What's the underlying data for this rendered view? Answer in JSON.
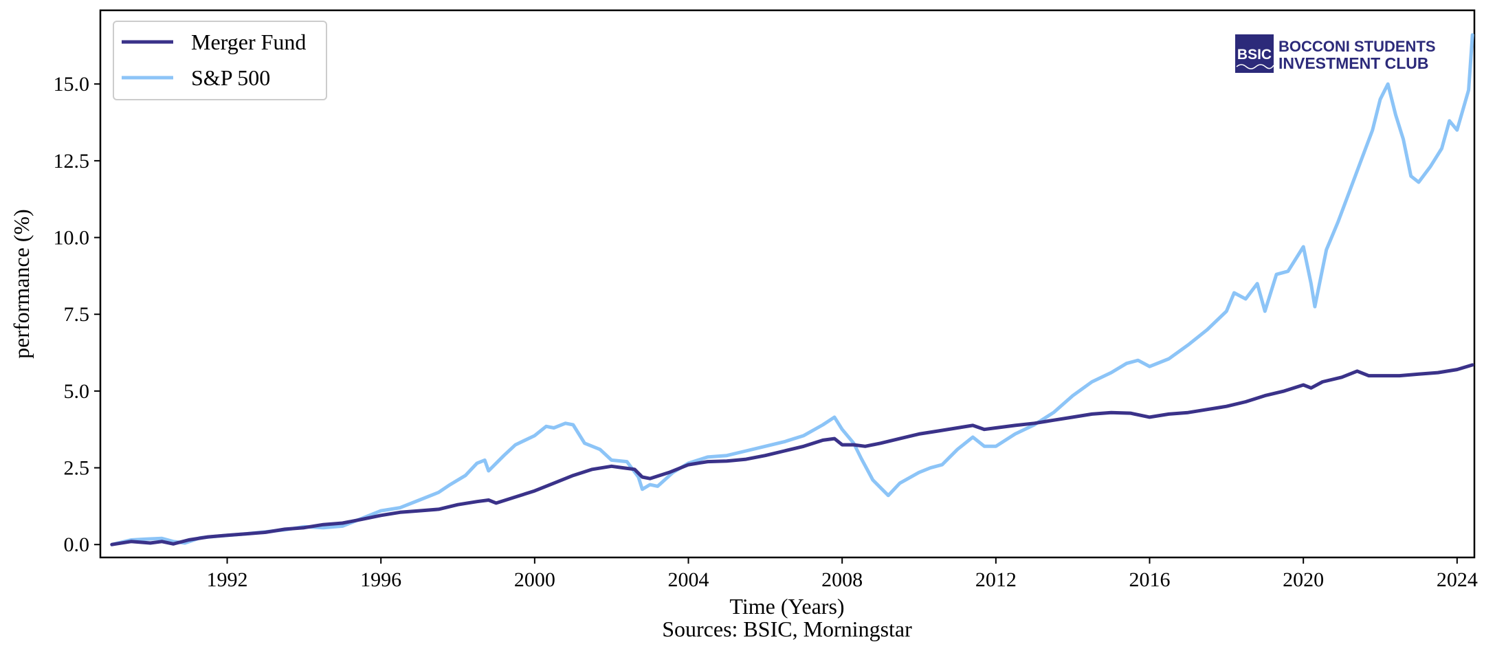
{
  "chart_data": {
    "type": "line",
    "title": "",
    "xlabel": "Time (Years)",
    "ylabel": "performance (%)",
    "source": "Sources: BSIC, Morningstar",
    "xlim": [
      1988.7,
      2024.45
    ],
    "ylim": [
      -0.42,
      17.4
    ],
    "x_ticks": [
      1992,
      1996,
      2000,
      2004,
      2008,
      2012,
      2016,
      2020,
      2024
    ],
    "y_ticks": [
      0.0,
      2.5,
      5.0,
      7.5,
      10.0,
      12.5,
      15.0
    ],
    "y_tick_labels": [
      "0.0",
      "2.5",
      "5.0",
      "7.5",
      "10.0",
      "12.5",
      "15.0"
    ],
    "grid": false,
    "legend_position": "top-left",
    "series": [
      {
        "name": "Merger Fund",
        "color": "#3a3289",
        "x": [
          1989.0,
          1989.5,
          1990.0,
          1990.3,
          1990.6,
          1991.0,
          1991.5,
          1992.0,
          1992.5,
          1993.0,
          1993.5,
          1994.0,
          1994.5,
          1995.0,
          1995.5,
          1996.0,
          1996.5,
          1997.0,
          1997.5,
          1998.0,
          1998.5,
          1998.8,
          1999.0,
          1999.5,
          2000.0,
          2000.5,
          2001.0,
          2001.5,
          2002.0,
          2002.3,
          2002.6,
          2002.8,
          2003.0,
          2003.5,
          2004.0,
          2004.5,
          2005.0,
          2005.5,
          2006.0,
          2006.5,
          2007.0,
          2007.5,
          2007.8,
          2008.0,
          2008.3,
          2008.6,
          2009.0,
          2009.5,
          2010.0,
          2010.5,
          2011.0,
          2011.4,
          2011.7,
          2012.0,
          2012.5,
          2013.0,
          2013.5,
          2014.0,
          2014.5,
          2015.0,
          2015.5,
          2016.0,
          2016.5,
          2017.0,
          2017.5,
          2018.0,
          2018.5,
          2019.0,
          2019.5,
          2020.0,
          2020.2,
          2020.5,
          2021.0,
          2021.4,
          2021.7,
          2022.0,
          2022.5,
          2023.0,
          2023.5,
          2024.0,
          2024.4
        ],
        "y": [
          0.0,
          0.1,
          0.05,
          0.1,
          0.02,
          0.15,
          0.25,
          0.3,
          0.35,
          0.4,
          0.5,
          0.55,
          0.65,
          0.7,
          0.82,
          0.95,
          1.05,
          1.1,
          1.15,
          1.3,
          1.4,
          1.45,
          1.35,
          1.55,
          1.75,
          2.0,
          2.25,
          2.45,
          2.55,
          2.5,
          2.45,
          2.2,
          2.15,
          2.35,
          2.6,
          2.7,
          2.72,
          2.78,
          2.9,
          3.05,
          3.2,
          3.4,
          3.45,
          3.25,
          3.25,
          3.2,
          3.3,
          3.45,
          3.6,
          3.7,
          3.8,
          3.88,
          3.75,
          3.8,
          3.88,
          3.95,
          4.05,
          4.15,
          4.25,
          4.3,
          4.28,
          4.15,
          4.25,
          4.3,
          4.4,
          4.5,
          4.65,
          4.85,
          5.0,
          5.2,
          5.1,
          5.3,
          5.45,
          5.65,
          5.5,
          5.5,
          5.5,
          5.55,
          5.6,
          5.7,
          5.85
        ]
      },
      {
        "name": "S&P 500",
        "color": "#8cc4f7",
        "x": [
          1989.0,
          1989.5,
          1989.9,
          1990.3,
          1990.6,
          1990.9,
          1991.3,
          1991.8,
          1992.5,
          1993.5,
          1994.0,
          1994.5,
          1995.0,
          1995.5,
          1996.0,
          1996.5,
          1997.0,
          1997.5,
          1997.8,
          1998.2,
          1998.5,
          1998.7,
          1998.8,
          1999.2,
          1999.5,
          2000.0,
          2000.3,
          2000.5,
          2000.8,
          2001.0,
          2001.3,
          2001.7,
          2002.0,
          2002.4,
          2002.7,
          2002.8,
          2003.0,
          2003.2,
          2003.6,
          2004.0,
          2004.5,
          2005.0,
          2005.5,
          2006.0,
          2006.5,
          2007.0,
          2007.5,
          2007.8,
          2008.0,
          2008.3,
          2008.5,
          2008.8,
          2009.2,
          2009.5,
          2010.0,
          2010.3,
          2010.6,
          2011.0,
          2011.4,
          2011.7,
          2012.0,
          2012.5,
          2013.0,
          2013.5,
          2014.0,
          2014.5,
          2015.0,
          2015.4,
          2015.7,
          2016.0,
          2016.5,
          2017.0,
          2017.5,
          2018.0,
          2018.2,
          2018.5,
          2018.8,
          2019.0,
          2019.3,
          2019.6,
          2020.0,
          2020.2,
          2020.3,
          2020.6,
          2020.9,
          2021.2,
          2021.5,
          2021.8,
          2022.0,
          2022.2,
          2022.4,
          2022.6,
          2022.8,
          2023.0,
          2023.3,
          2023.6,
          2023.8,
          2024.0,
          2024.3,
          2024.4
        ],
        "y": [
          0.0,
          0.15,
          0.18,
          0.2,
          0.1,
          0.05,
          0.22,
          0.28,
          0.35,
          0.48,
          0.58,
          0.55,
          0.6,
          0.85,
          1.1,
          1.2,
          1.45,
          1.7,
          1.95,
          2.25,
          2.65,
          2.75,
          2.4,
          2.9,
          3.25,
          3.55,
          3.85,
          3.8,
          3.95,
          3.9,
          3.3,
          3.1,
          2.75,
          2.7,
          2.2,
          1.8,
          1.95,
          1.9,
          2.35,
          2.65,
          2.85,
          2.9,
          3.05,
          3.2,
          3.35,
          3.55,
          3.9,
          4.15,
          3.75,
          3.3,
          2.8,
          2.1,
          1.6,
          2.0,
          2.35,
          2.5,
          2.6,
          3.1,
          3.5,
          3.2,
          3.2,
          3.6,
          3.9,
          4.3,
          4.85,
          5.3,
          5.6,
          5.9,
          6.0,
          5.8,
          6.05,
          6.5,
          7.0,
          7.6,
          8.2,
          8.0,
          8.5,
          7.6,
          8.8,
          8.9,
          9.7,
          8.5,
          7.75,
          9.6,
          10.5,
          11.5,
          12.5,
          13.5,
          14.5,
          15.0,
          14.0,
          13.2,
          12.0,
          11.8,
          12.3,
          12.9,
          13.8,
          13.5,
          14.8,
          16.6
        ]
      }
    ]
  },
  "logo": {
    "badge": "BSIC",
    "line1": "BOCCONI STUDENTS",
    "line2": "INVESTMENT CLUB",
    "badge_color": "#2c2a7a"
  }
}
